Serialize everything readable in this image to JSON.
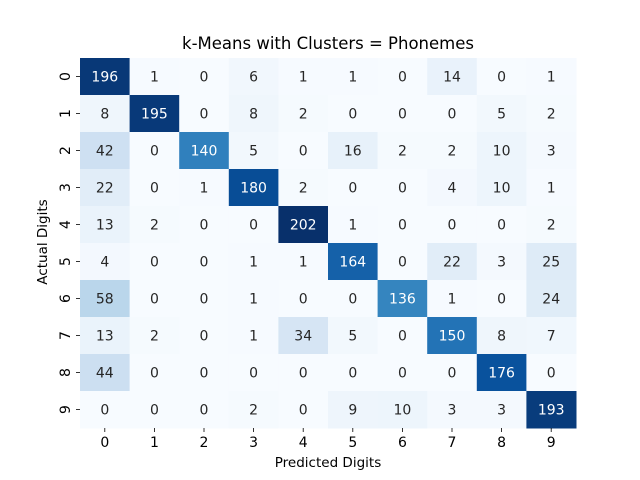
{
  "chart_data": {
    "type": "heatmap",
    "title": "k-Means with Clusters = Phonemes",
    "xlabel": "Predicted Digits",
    "ylabel": "Actual Digits",
    "x_categories": [
      "0",
      "1",
      "2",
      "3",
      "4",
      "5",
      "6",
      "7",
      "8",
      "9"
    ],
    "y_categories": [
      "0",
      "1",
      "2",
      "3",
      "4",
      "5",
      "6",
      "7",
      "8",
      "9"
    ],
    "matrix": [
      [
        196,
        1,
        0,
        6,
        1,
        1,
        0,
        14,
        0,
        1
      ],
      [
        8,
        195,
        0,
        8,
        2,
        0,
        0,
        0,
        5,
        2
      ],
      [
        42,
        0,
        140,
        5,
        0,
        16,
        2,
        2,
        10,
        3
      ],
      [
        22,
        0,
        1,
        180,
        2,
        0,
        0,
        4,
        10,
        1
      ],
      [
        13,
        2,
        0,
        0,
        202,
        1,
        0,
        0,
        0,
        2
      ],
      [
        4,
        0,
        0,
        1,
        1,
        164,
        0,
        22,
        3,
        25
      ],
      [
        58,
        0,
        0,
        1,
        0,
        0,
        136,
        1,
        0,
        24
      ],
      [
        13,
        2,
        0,
        1,
        34,
        5,
        0,
        150,
        8,
        7
      ],
      [
        44,
        0,
        0,
        0,
        0,
        0,
        0,
        0,
        176,
        0
      ],
      [
        0,
        0,
        0,
        2,
        0,
        9,
        10,
        3,
        3,
        193
      ]
    ],
    "colormap": "Blues",
    "color_low": "#f7fbff",
    "color_high": "#08306b",
    "colorbar": false,
    "annotated": true
  }
}
